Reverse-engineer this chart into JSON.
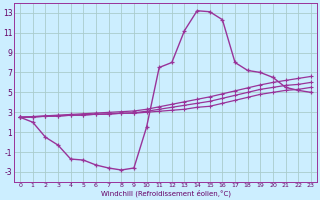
{
  "xlabel": "Windchill (Refroidissement éolien,°C)",
  "background_color": "#cceeff",
  "grid_color": "#aacccc",
  "line_color": "#993399",
  "x_hours": [
    0,
    1,
    2,
    3,
    4,
    5,
    6,
    7,
    8,
    9,
    10,
    11,
    12,
    13,
    14,
    15,
    16,
    17,
    18,
    19,
    20,
    21,
    22,
    23
  ],
  "windchill": [
    2.5,
    2.0,
    0.5,
    -0.3,
    -1.7,
    -1.8,
    -2.3,
    -2.6,
    -2.8,
    -2.6,
    1.5,
    7.5,
    8.0,
    11.2,
    13.2,
    13.1,
    12.3,
    8.0,
    7.2,
    7.0,
    6.5,
    5.5,
    5.2,
    5.0
  ],
  "line1": [
    2.5,
    2.5,
    2.6,
    2.6,
    2.7,
    2.7,
    2.8,
    2.8,
    2.9,
    2.9,
    3.0,
    3.1,
    3.2,
    3.3,
    3.5,
    3.6,
    3.9,
    4.2,
    4.5,
    4.8,
    5.0,
    5.2,
    5.3,
    5.5
  ],
  "line2": [
    2.5,
    2.55,
    2.6,
    2.65,
    2.7,
    2.75,
    2.8,
    2.85,
    2.9,
    2.95,
    3.1,
    3.3,
    3.5,
    3.7,
    3.9,
    4.1,
    4.4,
    4.7,
    5.0,
    5.3,
    5.5,
    5.7,
    5.8,
    6.0
  ],
  "line3": [
    2.5,
    2.57,
    2.64,
    2.71,
    2.78,
    2.85,
    2.92,
    2.99,
    3.06,
    3.13,
    3.3,
    3.55,
    3.8,
    4.05,
    4.3,
    4.55,
    4.85,
    5.15,
    5.45,
    5.75,
    6.0,
    6.2,
    6.4,
    6.6
  ],
  "ylim": [
    -4,
    14
  ],
  "yticks": [
    -3,
    -1,
    1,
    3,
    5,
    7,
    9,
    11,
    13
  ],
  "xlim": [
    -0.5,
    23.5
  ]
}
